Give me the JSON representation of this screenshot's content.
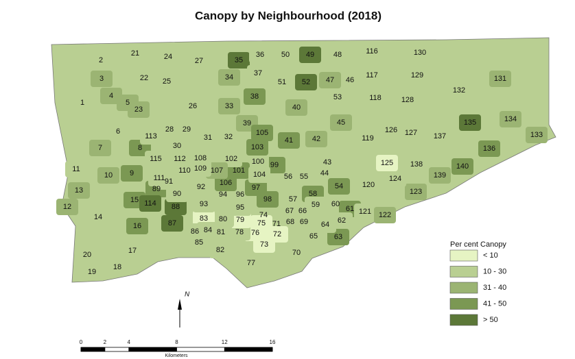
{
  "title": "Canopy by Neighbourhood (2018)",
  "legend": {
    "title": "Per cent Canopy",
    "items": [
      {
        "label": "< 10",
        "color": "#e6f4c3"
      },
      {
        "label": "10 - 30",
        "color": "#b9cf92"
      },
      {
        "label": "31 - 40",
        "color": "#9bb473"
      },
      {
        "label": "41 - 50",
        "color": "#7b9853"
      },
      {
        "label": "> 50",
        "color": "#5c7838"
      }
    ]
  },
  "neighbourhoods": [
    1,
    2,
    3,
    4,
    5,
    6,
    7,
    8,
    9,
    10,
    11,
    12,
    13,
    14,
    15,
    16,
    17,
    18,
    19,
    20,
    21,
    22,
    23,
    24,
    25,
    26,
    27,
    28,
    29,
    30,
    31,
    32,
    33,
    34,
    35,
    36,
    37,
    38,
    39,
    40,
    41,
    42,
    43,
    44,
    45,
    46,
    47,
    48,
    49,
    50,
    51,
    52,
    53,
    54,
    55,
    56,
    57,
    58,
    59,
    60,
    61,
    62,
    63,
    64,
    65,
    66,
    67,
    68,
    69,
    70,
    71,
    72,
    73,
    74,
    75,
    76,
    77,
    78,
    79,
    80,
    81,
    82,
    83,
    84,
    85,
    86,
    87,
    88,
    89,
    90,
    91,
    92,
    93,
    94,
    95,
    96,
    97,
    98,
    99,
    100,
    101,
    102,
    103,
    104,
    105,
    106,
    107,
    108,
    109,
    110,
    111,
    112,
    113,
    114,
    115,
    116,
    117,
    118,
    119,
    120,
    121,
    122,
    123,
    124,
    125,
    126,
    127,
    128,
    129,
    130,
    131,
    132,
    133,
    134,
    135,
    136,
    137,
    138,
    139,
    140
  ],
  "canopy_class": [
    1,
    1,
    2,
    2,
    2,
    1,
    2,
    3,
    3,
    2,
    1,
    2,
    2,
    1,
    3,
    3,
    1,
    1,
    1,
    1,
    1,
    1,
    2,
    1,
    1,
    1,
    1,
    1,
    1,
    1,
    1,
    1,
    2,
    2,
    4,
    1,
    1,
    3,
    2,
    2,
    3,
    2,
    1,
    1,
    2,
    1,
    2,
    1,
    4,
    1,
    1,
    4,
    1,
    3,
    1,
    1,
    1,
    3,
    1,
    1,
    3,
    1,
    3,
    1,
    1,
    1,
    1,
    1,
    1,
    1,
    1,
    0,
    0,
    1,
    0,
    0,
    1,
    1,
    0,
    1,
    1,
    1,
    0,
    1,
    1,
    1,
    4,
    4,
    3,
    1,
    1,
    1,
    1,
    1,
    1,
    1,
    3,
    3,
    3,
    1,
    3,
    1,
    3,
    1,
    3,
    3,
    2,
    1,
    1,
    1,
    1,
    1,
    1,
    4,
    1,
    1,
    1,
    1,
    1,
    1,
    1,
    2,
    2,
    1,
    0,
    1,
    1,
    1,
    1,
    1,
    2,
    1,
    2,
    2,
    4,
    3,
    1,
    1,
    2,
    3
  ],
  "north": "N",
  "scale": {
    "ticks": [
      0,
      2,
      4,
      8,
      12,
      16
    ],
    "unit": "Kilometers"
  }
}
